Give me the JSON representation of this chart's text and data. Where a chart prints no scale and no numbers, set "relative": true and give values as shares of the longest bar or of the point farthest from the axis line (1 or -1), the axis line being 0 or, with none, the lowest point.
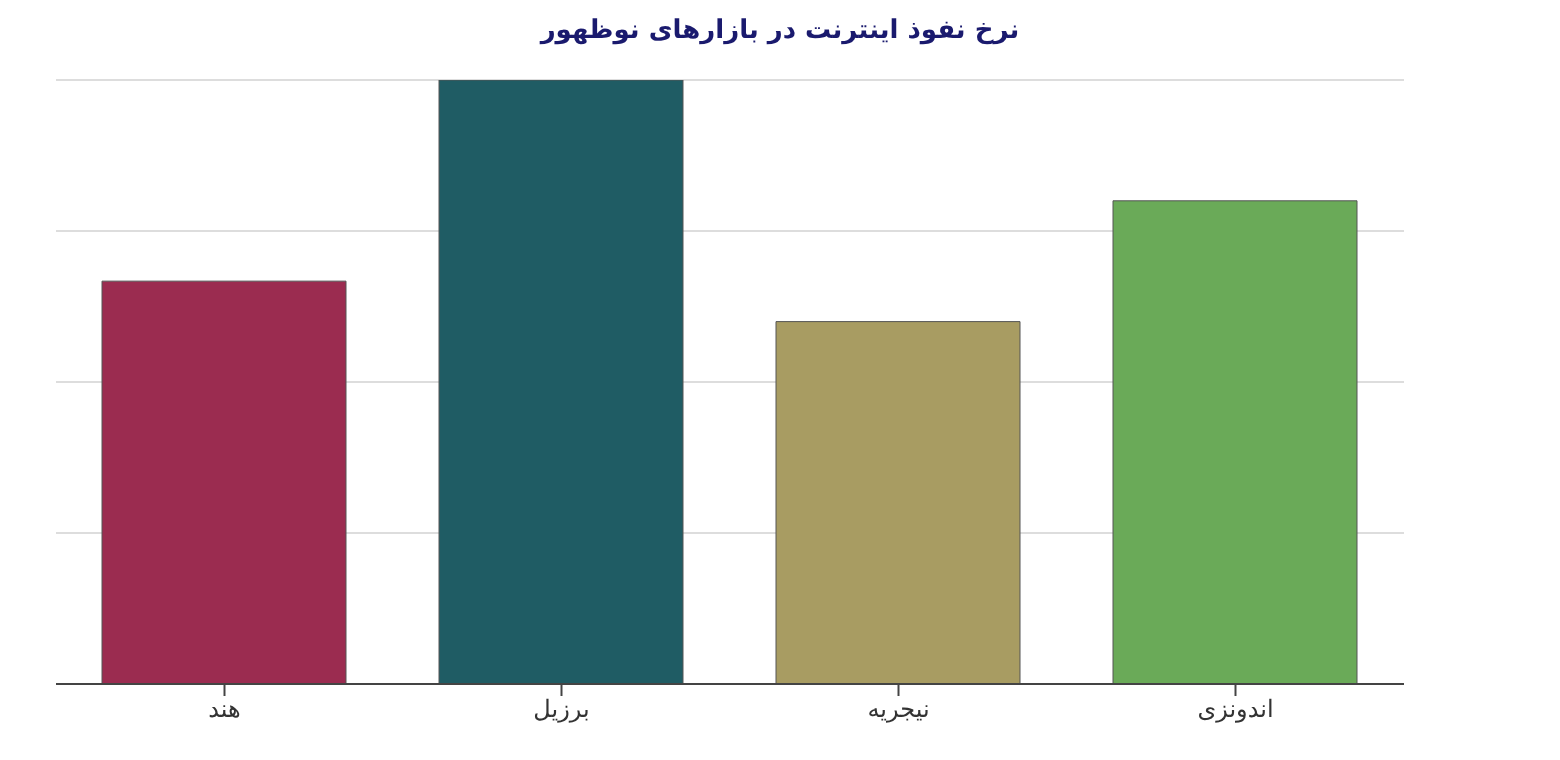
{
  "chart_data": {
    "type": "bar",
    "title": "نرخ نفوذ اینترنت در بازارهای نوظهور",
    "relative": true,
    "grid": "y",
    "categories": [
      "هند",
      "برزیل",
      "نیجریه",
      "اندونزی"
    ],
    "values": [
      0.667,
      1,
      0.6,
      0.8
    ],
    "colors": [
      "#9b2c50",
      "#1f5c64",
      "#a89c62",
      "#6aaa58"
    ]
  }
}
